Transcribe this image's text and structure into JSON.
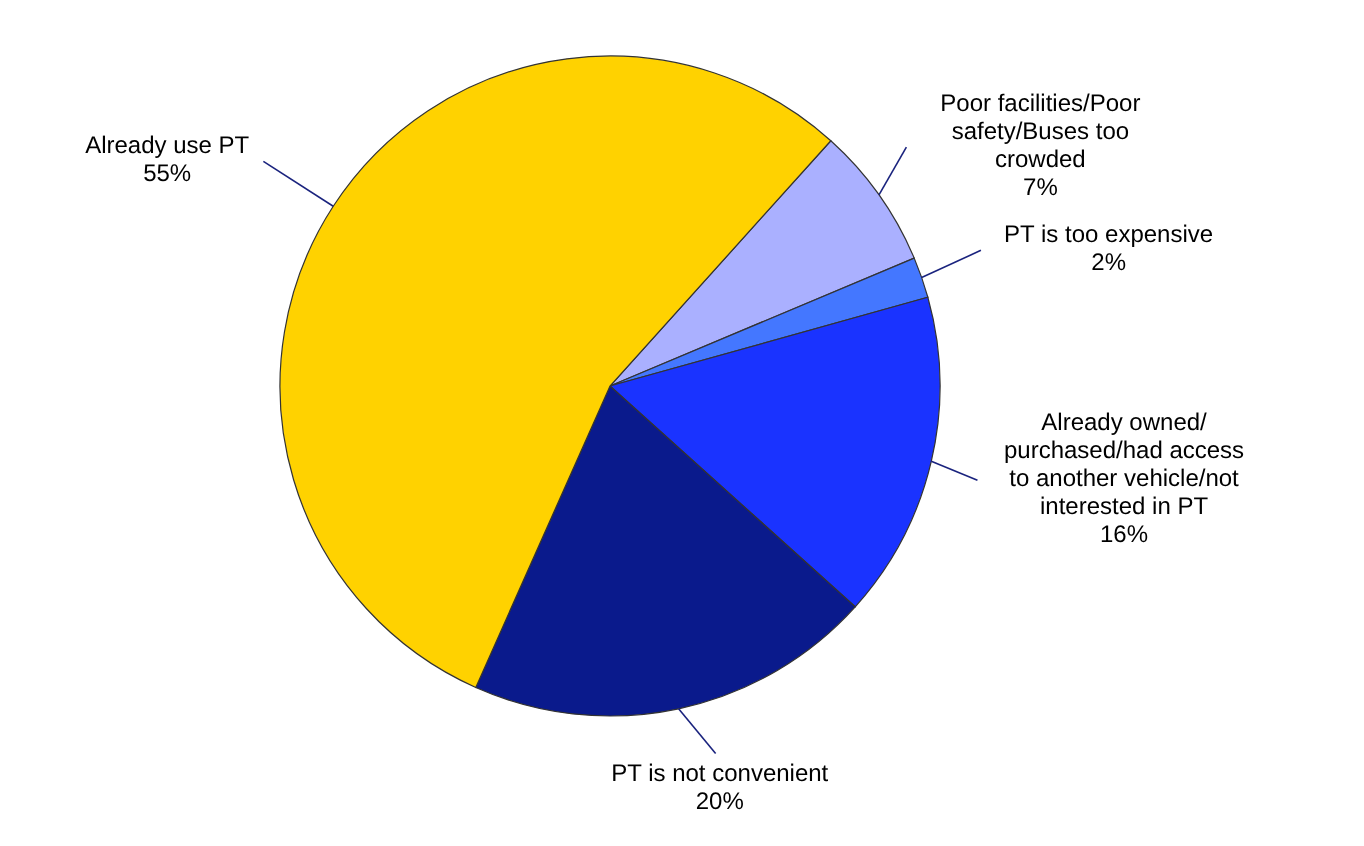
{
  "chart_data": {
    "type": "pie",
    "categories": [
      "Poor facilities/Poor safety/Buses too crowded",
      "PT is too expensive",
      "Already owned/purchased/had access to another vehicle/not interested in PT",
      "PT is not convenient",
      "Already use PT"
    ],
    "values": [
      7,
      2,
      16,
      20,
      55
    ],
    "colors": [
      "#aab0ff",
      "#4477ff",
      "#1a33ff",
      "#0a1a8c",
      "#ffd200"
    ],
    "value_labels": [
      "7%",
      "2%",
      "16%",
      "20%",
      "55%"
    ]
  }
}
